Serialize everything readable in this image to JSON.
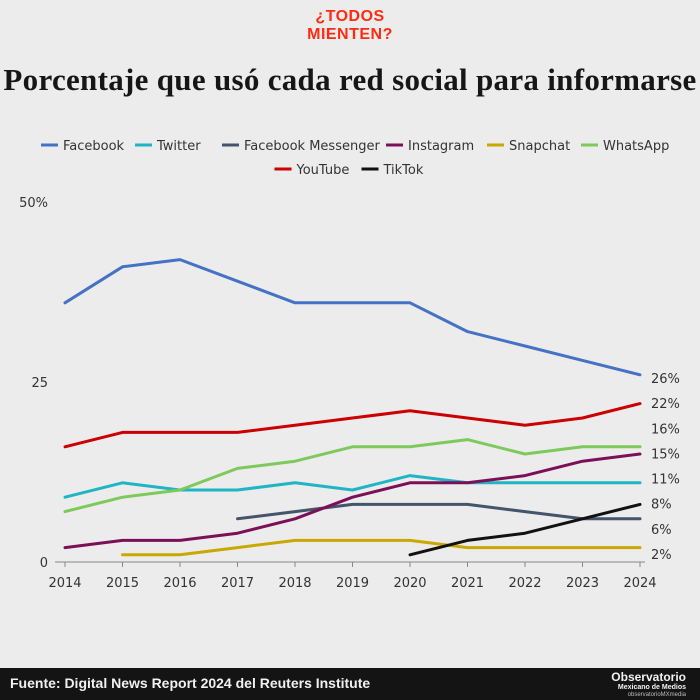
{
  "brand": {
    "line1": "¿TODOS",
    "line2": "MIENTEN?"
  },
  "title": "Porcentaje que usó cada red social para informarse",
  "footer": {
    "source": "Fuente: Digital News Report 2024 del Reuters Institute",
    "logo_main": "Observatorio",
    "logo_sub": "Mexicano de Medios",
    "logo_handle": "observatorioMXmedia"
  },
  "chart_data": {
    "type": "line",
    "x": [
      2014,
      2015,
      2016,
      2017,
      2018,
      2019,
      2020,
      2021,
      2022,
      2023,
      2024
    ],
    "ylim": [
      0,
      50
    ],
    "yticks": [
      0,
      25,
      50
    ],
    "ytick_labels": [
      "0",
      "25",
      "50%"
    ],
    "grid": false,
    "legend": "top",
    "series": [
      {
        "name": "Facebook",
        "color": "#4472c4",
        "values": [
          36,
          41,
          42,
          39,
          36,
          36,
          36,
          32,
          30,
          28,
          26
        ]
      },
      {
        "name": "Twitter",
        "color": "#1fb5c4",
        "values": [
          9,
          11,
          10,
          10,
          11,
          10,
          12,
          11,
          11,
          11,
          11
        ]
      },
      {
        "name": "Facebook Messenger",
        "color": "#44546a",
        "values": [
          null,
          null,
          null,
          6,
          7,
          8,
          8,
          8,
          7,
          6,
          6
        ]
      },
      {
        "name": "Instagram",
        "color": "#7b1058",
        "values": [
          2,
          3,
          3,
          4,
          6,
          9,
          11,
          11,
          12,
          14,
          15
        ]
      },
      {
        "name": "Snapchat",
        "color": "#c9a800",
        "values": [
          null,
          1,
          1,
          2,
          3,
          3,
          3,
          2,
          2,
          2,
          2
        ]
      },
      {
        "name": "WhatsApp",
        "color": "#7ec95c",
        "values": [
          7,
          9,
          10,
          13,
          14,
          16,
          16,
          17,
          15,
          16,
          16
        ]
      },
      {
        "name": "YouTube",
        "color": "#cc0000",
        "values": [
          16,
          18,
          18,
          18,
          19,
          20,
          21,
          20,
          19,
          20,
          22
        ]
      },
      {
        "name": "TikTok",
        "color": "#111111",
        "values": [
          null,
          null,
          null,
          null,
          null,
          null,
          1,
          3,
          4,
          6,
          8
        ]
      }
    ],
    "end_labels": [
      "26%",
      "22%",
      "16%",
      "15%",
      "11%",
      "8%",
      "6%",
      "2%"
    ]
  }
}
